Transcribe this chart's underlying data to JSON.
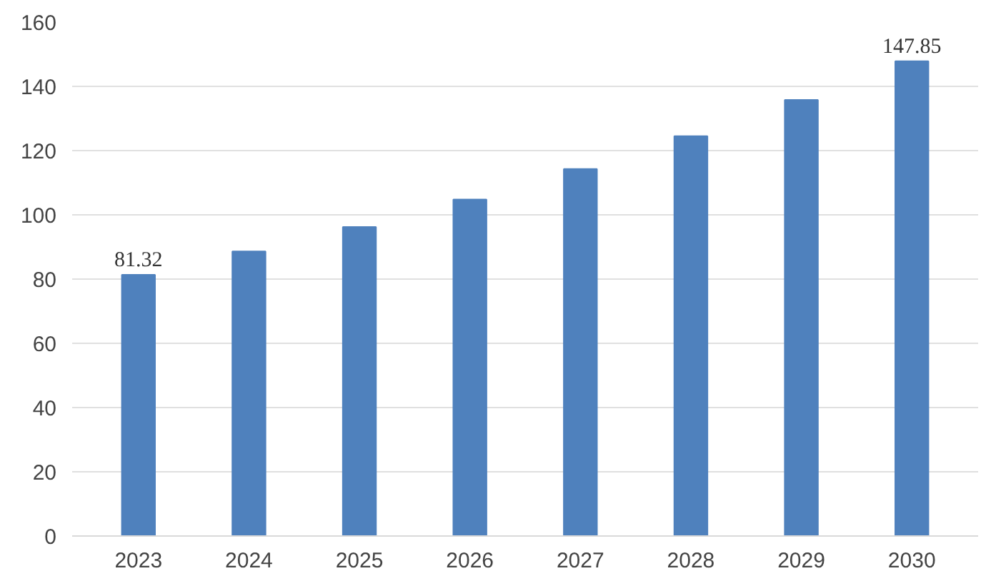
{
  "chart_data": {
    "type": "bar",
    "categories": [
      "2023",
      "2024",
      "2025",
      "2026",
      "2027",
      "2028",
      "2029",
      "2030"
    ],
    "values": [
      81.32,
      88.6,
      96.2,
      104.8,
      114.3,
      124.5,
      135.8,
      147.85
    ],
    "value_labels": [
      "81.32",
      null,
      null,
      null,
      null,
      null,
      null,
      "147.85"
    ],
    "color": "#4f81bd",
    "ylim": [
      0,
      160
    ],
    "yticks": [
      0,
      20,
      40,
      60,
      80,
      100,
      120,
      140,
      160
    ],
    "grid": "y"
  }
}
